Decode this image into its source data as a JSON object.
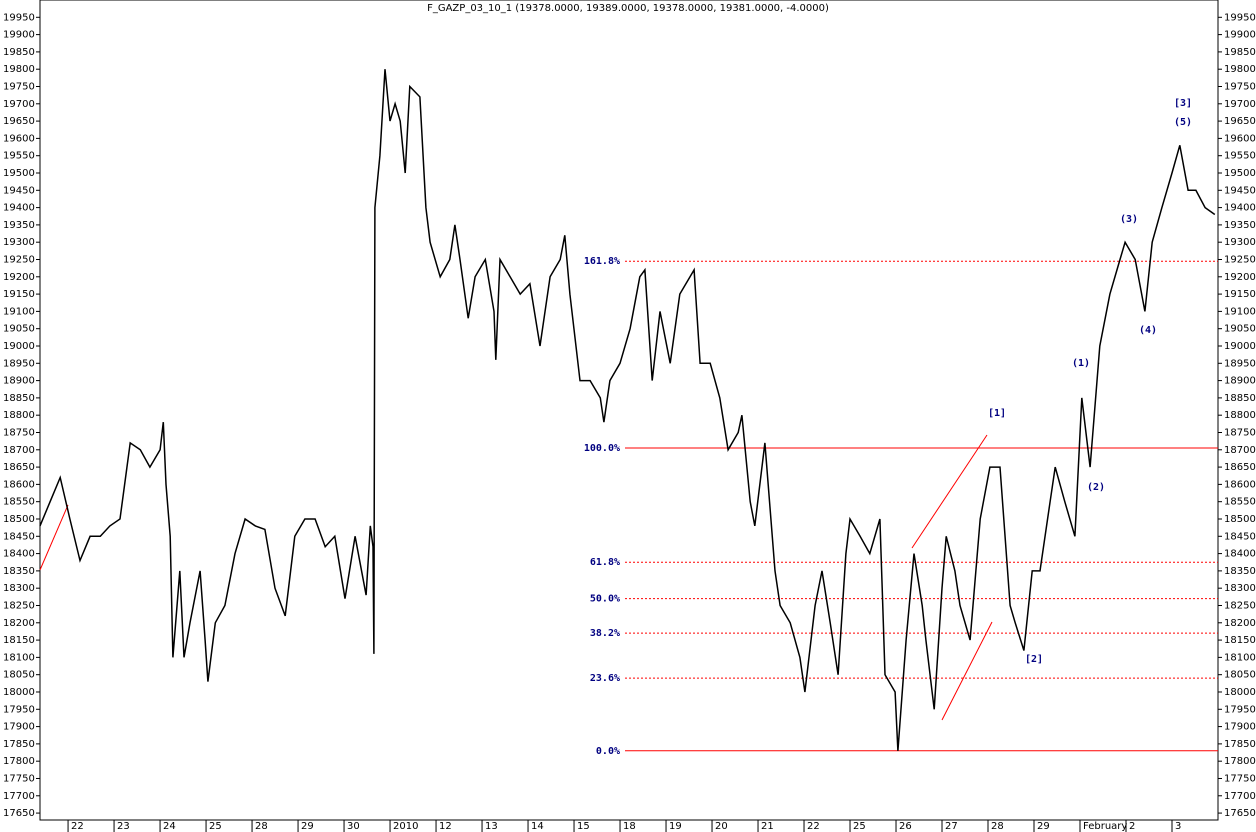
{
  "chart_data": {
    "type": "line",
    "title": "F_GAZP_03_10_1 (19378.0000, 19389.0000, 19378.0000, 19381.0000, -4.0000)",
    "color": "#000000",
    "x": [
      0.39,
      0.61,
      0.83,
      1.04,
      1.26,
      1.48,
      1.7,
      1.91,
      2.13,
      2.35,
      2.57,
      2.78,
      3.0,
      3.07,
      3.13,
      3.22,
      3.28,
      3.43,
      3.52,
      3.65,
      3.87,
      3.98,
      4.04,
      4.2,
      4.41,
      4.63,
      4.85,
      5.07,
      5.28,
      5.5,
      5.72,
      5.93,
      6.15,
      6.37,
      6.59,
      6.8,
      7.02,
      7.24,
      7.48,
      7.57,
      7.63,
      7.65,
      7.67,
      7.78,
      7.89,
      8.0,
      8.11,
      8.22,
      8.33,
      8.43,
      8.65,
      8.78,
      8.87,
      9.09,
      9.3,
      9.41,
      9.52,
      9.7,
      9.85,
      10.07,
      10.26,
      10.3,
      10.39,
      10.61,
      10.83,
      11.04,
      11.26,
      11.48,
      11.7,
      11.8,
      11.91,
      12.13,
      12.35,
      12.57,
      12.65,
      12.78,
      13.0,
      13.22,
      13.43,
      13.54,
      13.7,
      13.87,
      14.09,
      14.3,
      14.61,
      14.74,
      14.96,
      15.17,
      15.35,
      15.57,
      15.65,
      15.83,
      15.93,
      16.15,
      16.37,
      16.48,
      16.7,
      16.91,
      17.02,
      17.24,
      17.39,
      17.57,
      17.74,
      17.91,
      18.0,
      18.22,
      18.43,
      18.65,
      18.7,
      18.76,
      18.98,
      19.04,
      19.22,
      19.39,
      19.57,
      19.65,
      19.83,
      20.0,
      20.09,
      20.28,
      20.39,
      20.61,
      20.83,
      21.04,
      21.26,
      21.48,
      21.59,
      21.78,
      21.96,
      22.13,
      22.35,
      22.46,
      22.67,
      22.89,
      23.04,
      23.22,
      23.43,
      23.65,
      23.87,
      23.98,
      24.2,
      24.41,
      24.57,
      24.78,
      25.0,
      25.17,
      25.35,
      25.52,
      25.72,
      25.93
    ],
    "values": [
      18480,
      18550,
      18620,
      18500,
      18380,
      18450,
      18450,
      18480,
      18500,
      18720,
      18700,
      18650,
      18700,
      18780,
      18600,
      18450,
      18100,
      18350,
      18100,
      18200,
      18350,
      18150,
      18030,
      18200,
      18250,
      18400,
      18500,
      18480,
      18470,
      18300,
      18220,
      18450,
      18500,
      18500,
      18420,
      18450,
      18270,
      18450,
      18280,
      18480,
      18420,
      18110,
      19400,
      19550,
      19800,
      19650,
      19700,
      19650,
      19500,
      19750,
      19720,
      19400,
      19300,
      19200,
      19250,
      19350,
      19250,
      19080,
      19200,
      19250,
      19100,
      18960,
      19250,
      19200,
      19150,
      19180,
      19000,
      19200,
      19250,
      19320,
      19150,
      18900,
      18900,
      18850,
      18780,
      18900,
      18950,
      19050,
      19200,
      19220,
      18900,
      19100,
      18950,
      19150,
      19220,
      18950,
      18950,
      18850,
      18700,
      18750,
      18800,
      18550,
      18480,
      18720,
      18350,
      18250,
      18200,
      18100,
      18000,
      18250,
      18350,
      18200,
      18050,
      18400,
      18500,
      18450,
      18400,
      18500,
      18300,
      18050,
      18000,
      17830,
      18150,
      18400,
      18250,
      18150,
      17950,
      18300,
      18450,
      18350,
      18250,
      18150,
      18500,
      18650,
      18650,
      18250,
      18200,
      18120,
      18350,
      18350,
      18550,
      18650,
      18550,
      18450,
      18850,
      18650,
      19000,
      19150,
      19250,
      19300,
      19250,
      19100,
      19300,
      19400,
      19500,
      19580,
      19450,
      19450,
      19400,
      19380
    ],
    "xlim": [
      0.39,
      26
    ],
    "xticks": [
      {
        "value": 1,
        "label": "22"
      },
      {
        "value": 2,
        "label": "23"
      },
      {
        "value": 3,
        "label": "24"
      },
      {
        "value": 4,
        "label": "25"
      },
      {
        "value": 5,
        "label": "28"
      },
      {
        "value": 6,
        "label": "29"
      },
      {
        "value": 7,
        "label": "30"
      },
      {
        "value": 8,
        "label": "2010"
      },
      {
        "value": 9,
        "label": "12"
      },
      {
        "value": 10,
        "label": "13"
      },
      {
        "value": 11,
        "label": "14"
      },
      {
        "value": 12,
        "label": "15"
      },
      {
        "value": 13,
        "label": "18"
      },
      {
        "value": 14,
        "label": "19"
      },
      {
        "value": 15,
        "label": "20"
      },
      {
        "value": 16,
        "label": "21"
      },
      {
        "value": 17,
        "label": "22"
      },
      {
        "value": 18,
        "label": "25"
      },
      {
        "value": 19,
        "label": "26"
      },
      {
        "value": 20,
        "label": "27"
      },
      {
        "value": 21,
        "label": "28"
      },
      {
        "value": 22,
        "label": "29"
      },
      {
        "value": 23,
        "label": "February"
      },
      {
        "value": 24,
        "label": "2"
      },
      {
        "value": 25,
        "label": "3"
      }
    ],
    "ylim": [
      17630,
      20000
    ],
    "yticks": [
      17650,
      17700,
      17750,
      17800,
      17850,
      17900,
      17950,
      18000,
      18050,
      18100,
      18150,
      18200,
      18250,
      18300,
      18350,
      18400,
      18450,
      18500,
      18550,
      18600,
      18650,
      18700,
      18750,
      18800,
      18850,
      18900,
      18950,
      19000,
      19050,
      19100,
      19150,
      19200,
      19250,
      19300,
      19350,
      19400,
      19450,
      19500,
      19550,
      19600,
      19650,
      19700,
      19750,
      19800,
      19850,
      19900,
      19950
    ],
    "levels": [
      {
        "label": "161.8%",
        "value": 19245,
        "style": "dashed"
      },
      {
        "label": "100.0%",
        "value": 18705,
        "style": "solid"
      },
      {
        "label": "61.8%",
        "value": 18375,
        "style": "dashed"
      },
      {
        "label": "50.0%",
        "value": 18270,
        "style": "dashed"
      },
      {
        "label": "38.2%",
        "value": 18170,
        "style": "dashed"
      },
      {
        "label": "23.6%",
        "value": 18040,
        "style": "dashed"
      },
      {
        "label": "0.0%",
        "value": 17830,
        "style": "solid"
      }
    ],
    "level_color": "#ff0000",
    "annotations": [
      "[1]",
      "[2]",
      "[3]",
      "(5)",
      "(3)",
      "(4)",
      "(1)",
      "(2)"
    ]
  }
}
